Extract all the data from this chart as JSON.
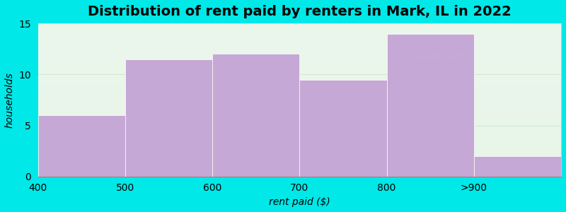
{
  "categories": [
    "400",
    "500",
    "600",
    "700",
    "800",
    ">900"
  ],
  "values": [
    6,
    11.5,
    12,
    9.5,
    14,
    2
  ],
  "bar_color": "#c5a8d5",
  "bar_edge_color": "#c5a8d5",
  "title": "Distribution of rent paid by renters in Mark, IL in 2022",
  "xlabel": "rent paid ($)",
  "ylabel": "households",
  "ylim": [
    0,
    15
  ],
  "yticks": [
    0,
    5,
    10,
    15
  ],
  "bg_color_top": "#e8f5e9",
  "bg_color_bottom": "#f5faf5",
  "fig_bg_color": "#00e8e8",
  "title_fontsize": 14,
  "label_fontsize": 10,
  "tick_fontsize": 10,
  "watermark": "ty-Data.com",
  "grid_color": "#d0e8d0"
}
